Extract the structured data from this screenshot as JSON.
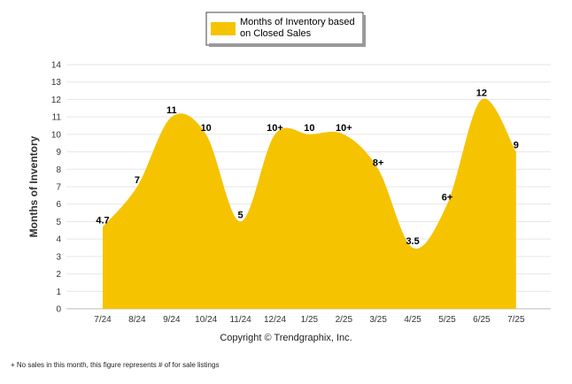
{
  "chart_data": {
    "type": "area",
    "categories": [
      "7/24",
      "8/24",
      "9/24",
      "10/24",
      "11/24",
      "12/24",
      "1/25",
      "2/25",
      "3/25",
      "4/25",
      "5/25",
      "6/25",
      "7/25"
    ],
    "series": [
      {
        "name": "Months of Inventory based on Closed Sales",
        "values": [
          4.7,
          7,
          11,
          10,
          5,
          10,
          10,
          10,
          8,
          3.5,
          6,
          12,
          9
        ],
        "labels": [
          "4.7",
          "7",
          "11",
          "10",
          "5",
          "10+",
          "10",
          "10+",
          "8+",
          "3.5",
          "6+",
          "12",
          "9"
        ]
      }
    ],
    "ylabel": "Months of Inventory",
    "ylim": [
      0,
      14
    ],
    "yticks": [
      "0",
      "1",
      "2",
      "3",
      "4",
      "5",
      "6",
      "7",
      "8",
      "9",
      "10",
      "11",
      "12",
      "13",
      "14"
    ],
    "grid": true,
    "legend": "top-center",
    "fill_color": "#F5C300"
  },
  "legend": {
    "line1": "Months of Inventory based",
    "line2": "on Closed Sales"
  },
  "copyright": "Copyright © Trendgraphix, Inc.",
  "footnote": "+ No sales in this month, this figure represents # of for sale listings"
}
